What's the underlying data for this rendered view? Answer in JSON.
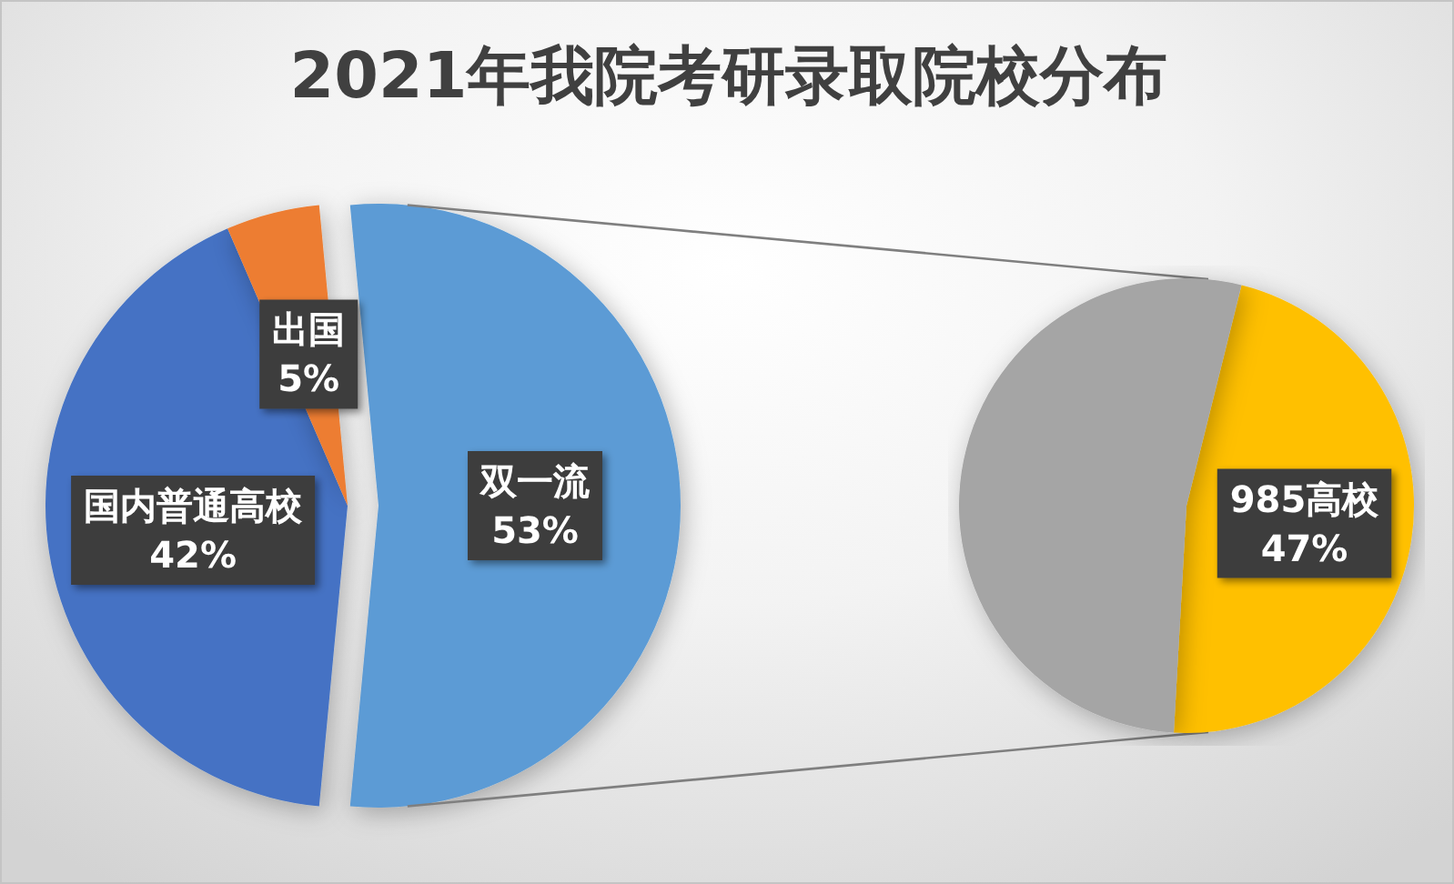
{
  "chart_data": [
    {
      "type": "pie",
      "title": "2021年我院考研录取院校分布",
      "categories": [
        "双一流",
        "国内普通高校",
        "出国"
      ],
      "values": [
        53,
        42,
        5
      ],
      "colors": [
        "#5b9bd5",
        "#4472c4",
        "#ed7d31"
      ],
      "value_labels": [
        "53%",
        "42%",
        "5%"
      ]
    },
    {
      "type": "pie",
      "categories": [
        "985高校",
        null
      ],
      "values": [
        47,
        53
      ],
      "colors": [
        "#ffc000",
        "#a5a5a5"
      ],
      "value_labels": [
        "47%",
        null
      ]
    }
  ]
}
